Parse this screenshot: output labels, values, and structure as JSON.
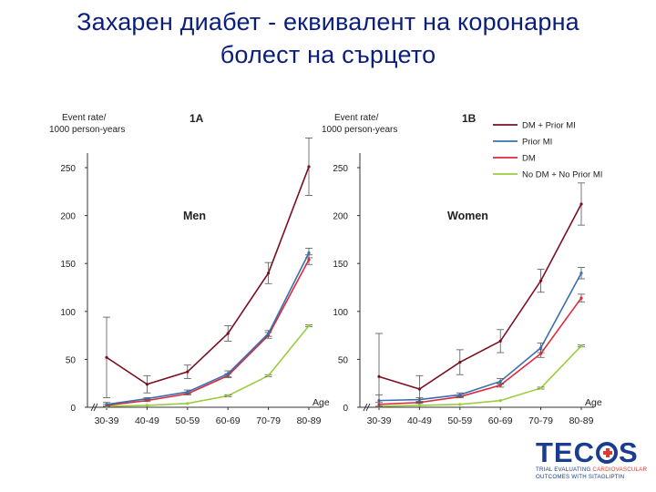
{
  "slide": {
    "title_line1": "Захарен диабет - еквивалент на коронарна",
    "title_line2": "болест на сърцето"
  },
  "logo": {
    "text_left": "TEC",
    "text_right": "S",
    "tagline_line1_a": "TRIAL EVALUATING ",
    "tagline_line1_b": "CARDIOVASCULAR",
    "tagline_line2": "OUTCOMES WITH SITAGLIPTIN"
  },
  "colors": {
    "dm_prior_mi": "#7a1020",
    "prior_mi": "#3a6fb0",
    "dm": "#e0283c",
    "no_dm_no_prior_mi": "#9acd3c",
    "logo_blue": "#1b3d8f",
    "logo_red": "#e03a2f"
  },
  "chart_data": [
    {
      "type": "line",
      "panel": "1A",
      "inner_label": "Men",
      "ylabel": "Event rate/ 1000 person-years",
      "xlabel": "Age",
      "categories": [
        "30-39",
        "40-49",
        "50-59",
        "60-69",
        "70-79",
        "80-89"
      ],
      "yticks": [
        0,
        50,
        100,
        150,
        200,
        250
      ],
      "ylim": [
        0,
        290
      ],
      "series": [
        {
          "name": "DM + Prior MI",
          "color": "#7a1020",
          "values": [
            52,
            24,
            37,
            77,
            140,
            251
          ],
          "err": [
            42,
            9,
            7,
            8,
            11,
            30
          ]
        },
        {
          "name": "Prior MI",
          "color": "#3a6fb0",
          "values": [
            3,
            9,
            16,
            35,
            77,
            161
          ],
          "err": [
            2,
            1,
            2,
            3,
            3,
            5
          ]
        },
        {
          "name": "DM",
          "color": "#e0283c",
          "values": [
            2,
            7,
            14,
            33,
            75,
            154
          ],
          "err": [
            1,
            1,
            1,
            2,
            3,
            5
          ]
        },
        {
          "name": "No DM + No Prior MI",
          "color": "#9acd3c",
          "values": [
            1,
            2,
            4,
            12,
            33,
            85
          ],
          "err": [
            0,
            0,
            0,
            1,
            1,
            1
          ]
        }
      ]
    },
    {
      "type": "line",
      "panel": "1B",
      "inner_label": "Women",
      "ylabel": "Event rate/ 1000 person-years",
      "xlabel": "Age",
      "categories": [
        "30-39",
        "40-49",
        "50-59",
        "60-69",
        "70-79",
        "80-89"
      ],
      "yticks": [
        0,
        50,
        100,
        150,
        200,
        250
      ],
      "ylim": [
        0,
        290
      ],
      "legend_position": "top-right",
      "series": [
        {
          "name": "DM + Prior MI",
          "color": "#7a1020",
          "values": [
            32,
            19,
            47,
            69,
            132,
            212
          ],
          "err": [
            45,
            14,
            13,
            12,
            12,
            22
          ]
        },
        {
          "name": "Prior MI",
          "color": "#3a6fb0",
          "values": [
            7,
            8,
            13,
            27,
            62,
            140
          ],
          "err": [
            6,
            2,
            2,
            3,
            5,
            6
          ]
        },
        {
          "name": "DM",
          "color": "#e0283c",
          "values": [
            3,
            5,
            11,
            23,
            56,
            114
          ],
          "err": [
            2,
            1,
            1,
            2,
            4,
            4
          ]
        },
        {
          "name": "No DM + No Prior MI",
          "color": "#9acd3c",
          "values": [
            1,
            2,
            3,
            7,
            20,
            64
          ],
          "err": [
            0,
            0,
            0,
            0,
            1,
            1
          ]
        }
      ]
    }
  ]
}
